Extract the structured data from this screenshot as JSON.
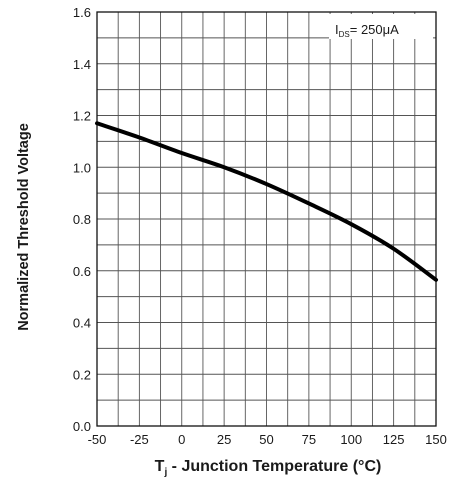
{
  "chart_data": {
    "type": "line",
    "xlabel_main": "T",
    "xlabel_sub": "j",
    "xlabel_rest": " - Junction Temperature (°C)",
    "ylabel": "Normalized Threshold Voltage",
    "xlim": [
      -50,
      150
    ],
    "ylim": [
      0.0,
      1.6
    ],
    "x_ticks": [
      "-50",
      "-25",
      "0",
      "25",
      "50",
      "75",
      "100",
      "125",
      "150"
    ],
    "y_ticks": [
      "0.0",
      "0.2",
      "0.4",
      "0.6",
      "0.8",
      "1.0",
      "1.2",
      "1.4",
      "1.6"
    ],
    "grid": true,
    "annotation": {
      "prefix": "I",
      "sub": "DS",
      "rest": "= 250μA"
    },
    "series": [
      {
        "x": [
          -50,
          -25,
          0,
          25,
          50,
          75,
          100,
          125,
          150
        ],
        "values": [
          1.17,
          1.115,
          1.055,
          1.0,
          0.935,
          0.86,
          0.78,
          0.685,
          0.565
        ]
      }
    ],
    "colors": {
      "line": "#000000",
      "grid": "#555555",
      "frame": "#111111"
    }
  }
}
